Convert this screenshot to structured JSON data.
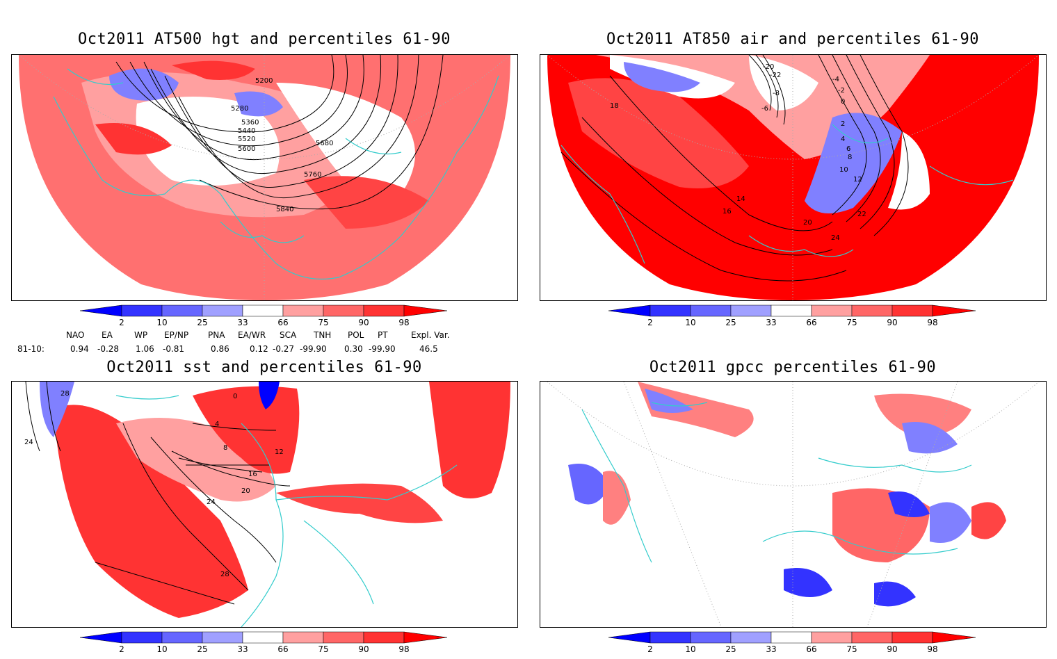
{
  "panels": [
    {
      "id": "p1",
      "title": "Oct2011 AT500 hgt and percentiles 61-90",
      "contour_labels": [
        "5200",
        "5280",
        "5360",
        "5440",
        "5520",
        "5600",
        "5680",
        "5760",
        "5840"
      ]
    },
    {
      "id": "p2",
      "title": "Oct2011 AT850 air and percentiles 61-90",
      "contour_labels": [
        "-20",
        "-22",
        "-8",
        "-6",
        "-4",
        "-2",
        "0",
        "2",
        "4",
        "6",
        "8",
        "10",
        "12",
        "14",
        "16",
        "18",
        "20",
        "22",
        "24"
      ]
    },
    {
      "id": "p3",
      "title": "Oct2011 sst and percentiles 61-90",
      "contour_labels": [
        "28",
        "24",
        "0",
        "4",
        "8",
        "12",
        "16",
        "20",
        "24",
        "28"
      ]
    },
    {
      "id": "p4",
      "title": "Oct2011 gpcc percentiles 61-90",
      "contour_labels": []
    }
  ],
  "colorbar": {
    "labels": [
      "2",
      "10",
      "25",
      "33",
      "66",
      "75",
      "90",
      "98"
    ],
    "colors": [
      "#0000ff",
      "#3333ff",
      "#6666ff",
      "#a0a0ff",
      "#ffffff",
      "#ffa0a0",
      "#ff6666",
      "#ff3333",
      "#ff0000"
    ]
  },
  "indices": {
    "headers": [
      "NAO",
      "EA",
      "WP",
      "EP/NP",
      "PNA",
      "EA/WR",
      "SCA",
      "TNH",
      "POL",
      "PT",
      "Expl. Var."
    ],
    "row_label": "81-10:",
    "values": [
      "0.94",
      "-0.28",
      "1.06",
      "-0.81",
      "0.86",
      "0.12",
      "-0.27",
      "-99.90",
      "0.30",
      "-99.90",
      "46.5"
    ]
  },
  "colors": {
    "coastline": "#33cccc",
    "contour": "#000000",
    "warm": "#ff0000",
    "cold": "#3333ff"
  }
}
